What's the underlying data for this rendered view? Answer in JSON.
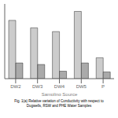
{
  "chart_data": {
    "type": "bar",
    "title": "Fig. 1(a) Relative variation of Conductivity with respect to\nDugwells, RSW and PHE Water Samples",
    "xlabel": "Sampling Source",
    "categories": [
      "DW2",
      "DW3",
      "DW4",
      "DW5",
      "P"
    ],
    "series": [
      {
        "color": "#cccccc",
        "values": [
          0.78,
          0.68,
          0.63,
          0.9,
          0.28
        ]
      },
      {
        "color": "#aaaaaa",
        "values": [
          0.21,
          0.19,
          0.1,
          0.21,
          0.09
        ]
      }
    ],
    "ylim": [
      0,
      1.0
    ],
    "tick_labels": "x",
    "grid": false
  }
}
